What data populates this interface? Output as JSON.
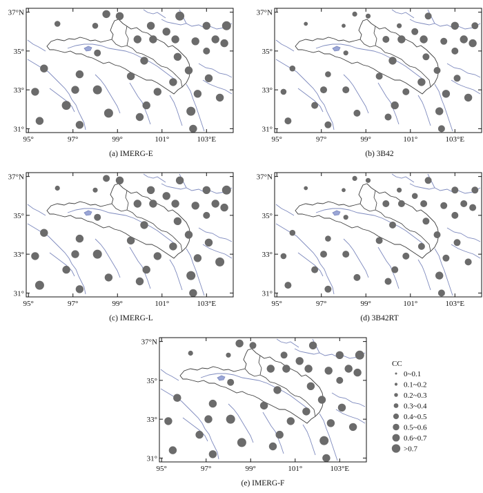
{
  "lon_ticks": [
    {
      "value": 95,
      "label": "95°"
    },
    {
      "value": 97,
      "label": "97°"
    },
    {
      "value": 99,
      "label": "99°"
    },
    {
      "value": 101,
      "label": "101°"
    },
    {
      "value": 103,
      "label": "103°E"
    }
  ],
  "lat_ticks": [
    {
      "value": 31,
      "label": "31°"
    },
    {
      "value": 33,
      "label": "33°"
    },
    {
      "value": 35,
      "label": "35°"
    },
    {
      "value": 37,
      "label": "37°N"
    }
  ],
  "extent": {
    "lon_min": 94.9,
    "lon_max": 104.2,
    "lat_min": 30.8,
    "lat_max": 37.2
  },
  "panels": [
    {
      "id": "a",
      "caption": "(a) IMERG-E"
    },
    {
      "id": "b",
      "caption": "(b) 3B42"
    },
    {
      "id": "c",
      "caption": "(c) IMERG-L"
    },
    {
      "id": "d",
      "caption": "(d) 3B42RT"
    },
    {
      "id": "e",
      "caption": "(e) IMERG-F"
    }
  ],
  "stations": [
    {
      "lon": 96.3,
      "lat": 36.4
    },
    {
      "lon": 98.0,
      "lat": 36.3
    },
    {
      "lon": 98.5,
      "lat": 36.9
    },
    {
      "lon": 99.1,
      "lat": 36.8
    },
    {
      "lon": 100.5,
      "lat": 36.3
    },
    {
      "lon": 101.2,
      "lat": 36.0
    },
    {
      "lon": 101.8,
      "lat": 36.8
    },
    {
      "lon": 103.0,
      "lat": 36.3
    },
    {
      "lon": 103.9,
      "lat": 36.3
    },
    {
      "lon": 99.9,
      "lat": 35.6
    },
    {
      "lon": 100.6,
      "lat": 35.6
    },
    {
      "lon": 101.6,
      "lat": 35.6
    },
    {
      "lon": 102.5,
      "lat": 35.5
    },
    {
      "lon": 103.4,
      "lat": 35.6
    },
    {
      "lon": 103.8,
      "lat": 35.4
    },
    {
      "lon": 98.1,
      "lat": 34.9
    },
    {
      "lon": 101.7,
      "lat": 34.7
    },
    {
      "lon": 103.0,
      "lat": 35.0
    },
    {
      "lon": 95.7,
      "lat": 34.1
    },
    {
      "lon": 100.2,
      "lat": 34.5
    },
    {
      "lon": 102.2,
      "lat": 34.0
    },
    {
      "lon": 97.3,
      "lat": 33.8
    },
    {
      "lon": 99.6,
      "lat": 33.7
    },
    {
      "lon": 101.5,
      "lat": 33.4
    },
    {
      "lon": 103.1,
      "lat": 33.6
    },
    {
      "lon": 95.3,
      "lat": 32.9
    },
    {
      "lon": 97.1,
      "lat": 33.0
    },
    {
      "lon": 98.1,
      "lat": 33.0
    },
    {
      "lon": 100.8,
      "lat": 32.9
    },
    {
      "lon": 102.6,
      "lat": 32.8
    },
    {
      "lon": 103.6,
      "lat": 32.6
    },
    {
      "lon": 96.7,
      "lat": 32.2
    },
    {
      "lon": 100.3,
      "lat": 32.2
    },
    {
      "lon": 98.6,
      "lat": 31.8
    },
    {
      "lon": 100.0,
      "lat": 31.6
    },
    {
      "lon": 102.3,
      "lat": 31.9
    },
    {
      "lon": 95.5,
      "lat": 31.4
    },
    {
      "lon": 97.3,
      "lat": 31.2
    },
    {
      "lon": 102.4,
      "lat": 31.0
    }
  ],
  "cc": {
    "a": [
      4,
      4,
      6,
      6,
      6,
      6,
      7,
      6,
      7,
      6,
      6,
      6,
      6,
      6,
      6,
      5,
      6,
      5,
      6,
      6,
      6,
      6,
      6,
      6,
      6,
      6,
      6,
      7,
      6,
      6,
      6,
      7,
      6,
      7,
      6,
      7,
      6,
      6,
      6
    ],
    "b": [
      2,
      2,
      3,
      3,
      3,
      5,
      5,
      6,
      5,
      5,
      6,
      6,
      5,
      6,
      6,
      3,
      5,
      5,
      4,
      6,
      5,
      4,
      5,
      6,
      5,
      4,
      5,
      5,
      5,
      6,
      6,
      5,
      6,
      5,
      5,
      6,
      5,
      5,
      5
    ],
    "c": [
      3,
      3,
      5,
      6,
      6,
      6,
      6,
      6,
      7,
      6,
      6,
      6,
      6,
      6,
      6,
      5,
      6,
      5,
      6,
      6,
      6,
      6,
      6,
      6,
      6,
      6,
      6,
      7,
      6,
      6,
      7,
      6,
      6,
      6,
      6,
      7,
      7,
      6,
      6
    ],
    "d": [
      2,
      2,
      3,
      3,
      3,
      4,
      5,
      5,
      5,
      5,
      5,
      5,
      5,
      5,
      5,
      3,
      5,
      5,
      4,
      5,
      5,
      4,
      5,
      5,
      5,
      4,
      5,
      5,
      5,
      5,
      5,
      5,
      5,
      5,
      5,
      6,
      5,
      5,
      5
    ],
    "e": [
      3,
      3,
      6,
      5,
      5,
      6,
      6,
      6,
      7,
      6,
      6,
      6,
      6,
      6,
      6,
      5,
      6,
      5,
      6,
      6,
      6,
      6,
      6,
      6,
      6,
      6,
      6,
      7,
      6,
      6,
      6,
      6,
      6,
      7,
      6,
      7,
      6,
      6,
      6
    ]
  },
  "legend": {
    "title": "CC",
    "items": [
      "0~0.1",
      "0.1~0.2",
      "0.2~0.3",
      "0.3~0.4",
      "0.4~0.5",
      "0.5~0.6",
      "0.6~0.7",
      ">0.7"
    ]
  },
  "colors": {
    "marker": "#6b6b6b",
    "river": "#7c88bd",
    "border": "#3a3a3a",
    "frame": "#111111"
  }
}
